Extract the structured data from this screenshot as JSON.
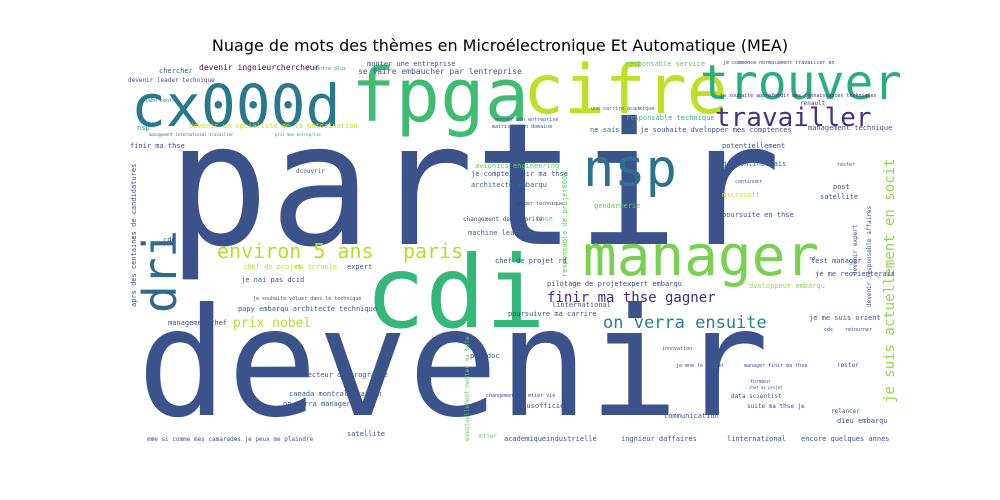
{
  "title": "Nuage de mots des thèmes en Microélectronique Et Automatique (MEA)",
  "words": [
    {
      "text": "partir",
      "color": "#3b528b"
    },
    {
      "text": "devenir",
      "color": "#3b528b"
    },
    {
      "text": "cdi",
      "color": "#35b779"
    },
    {
      "text": "fpga",
      "color": "#3fbc73"
    },
    {
      "text": "cifre",
      "color": "#bddf26"
    },
    {
      "text": "cx000d",
      "color": "#2a788e"
    },
    {
      "text": "trouver",
      "color": "#29af7f"
    },
    {
      "text": "manager",
      "color": "#7ad151"
    },
    {
      "text": "nsp",
      "color": "#2c728e"
    },
    {
      "text": "dri",
      "color": "#31688e"
    },
    {
      "text": "travailler",
      "color": "#46327e"
    },
    {
      "text": "environ 5 ans",
      "color": "#b5de2b"
    },
    {
      "text": "paris",
      "color": "#b5de2b"
    },
    {
      "text": "on verra ensuite",
      "color": "#277f8e"
    },
    {
      "text": "finir ma thse gagner",
      "color": "#472d7b"
    },
    {
      "text": "je suis actuellement en socit",
      "color": "#8fd744"
    },
    {
      "text": "prix nobel",
      "color": "#b5de2b"
    },
    {
      "text": "devenir ingnieurchercheur",
      "color": "#440154"
    },
    {
      "text": "se faire embaucher par lentreprise",
      "color": "#3b528b"
    },
    {
      "text": "monter une entreprise",
      "color": "#3b528b"
    },
    {
      "text": "responsable service",
      "color": "#5ec962"
    },
    {
      "text": "je commence normalement travailler en",
      "color": "#472d7b"
    },
    {
      "text": "je souhaite approfondir mes connaissances techniques",
      "color": "#482878"
    },
    {
      "text": "chercher",
      "color": "#31688e"
    },
    {
      "text": "devenir leader technique",
      "color": "#3e4989"
    },
    {
      "text": "montre plus",
      "color": "#1f9e89"
    },
    {
      "text": "labo cenfs",
      "color": "#21918c"
    },
    {
      "text": "nsp",
      "color": "#21918c"
    },
    {
      "text": "devenir un spcialiste de la motorisation",
      "color": "#c8e020"
    },
    {
      "text": "management international travailler",
      "color": "#2c728e"
    },
    {
      "text": "prix mon entreprise",
      "color": "#1f9e89"
    },
    {
      "text": "finir ma thse",
      "color": "#3e4989"
    },
    {
      "text": "ne sais pas",
      "color": "#2c728e"
    },
    {
      "text": "je souhaite dvelopper mes comptences",
      "color": "#3b528b"
    },
    {
      "text": "responsable technique",
      "color": "#35b779"
    },
    {
      "text": "une carrire acadmique",
      "color": "#31688e"
    },
    {
      "text": "renault",
      "color": "#3e4989"
    },
    {
      "text": "management technique",
      "color": "#3b528b"
    },
    {
      "text": "potentiellement",
      "color": "#3b528b"
    },
    {
      "text": "je continuerais",
      "color": "#31688e"
    },
    {
      "text": "avionics engineering",
      "color": "#5ec962"
    },
    {
      "text": "je compte finir ma thse",
      "color": "#3b528b"
    },
    {
      "text": "architecte embarqu",
      "color": "#31688e"
    },
    {
      "text": "leader technique",
      "color": "#3e4989"
    },
    {
      "text": "gendarmerie",
      "color": "#5ec962"
    },
    {
      "text": "changement dentreprise",
      "color": "#3e4989"
    },
    {
      "text": "thse",
      "color": "#5ec962"
    },
    {
      "text": "machine learning",
      "color": "#31688e"
    },
    {
      "text": "responsable de projet000d",
      "color": "#5ec962"
    },
    {
      "text": "microsoft",
      "color": "#bddf26"
    },
    {
      "text": "continuer",
      "color": "#3b528b"
    },
    {
      "text": "poursuite en thse",
      "color": "#3b528b"
    },
    {
      "text": "post",
      "color": "#3e4989"
    },
    {
      "text": "satellite",
      "color": "#3b528b"
    },
    {
      "text": "devenir expert",
      "color": "#3b528b"
    },
    {
      "text": "devenir responsable affaires",
      "color": "#3b528b"
    },
    {
      "text": "cdd",
      "color": "#3b528b"
    },
    {
      "text": "chef de projet",
      "color": "#b5de2b"
    },
    {
      "text": "ou scroule",
      "color": "#b5de2b"
    },
    {
      "text": "expert",
      "color": "#3b528b"
    },
    {
      "text": "chef de projet rd",
      "color": "#3b528b"
    },
    {
      "text": "je nai pas dcid",
      "color": "#3b528b"
    },
    {
      "text": "je souhaite voluer dans le technique",
      "color": "#3b528b"
    },
    {
      "text": "papy embarqu architecte technique",
      "color": "#31688e"
    },
    {
      "text": "managementchef",
      "color": "#3b528b"
    },
    {
      "text": "pilotage de projetexpert embarqu",
      "color": "#3e4989"
    },
    {
      "text": "poursuivre ma carrire",
      "color": "#3b528b"
    },
    {
      "text": "linternational",
      "color": "#3b528b"
    },
    {
      "text": "je me reorienterais",
      "color": "#3b528b"
    },
    {
      "text": "test manager",
      "color": "#3b528b"
    },
    {
      "text": "dveloppeur embarqu",
      "color": "#8fd744"
    },
    {
      "text": "aprs des centaines de candidatures",
      "color": "#3e4989"
    },
    {
      "text": "parisienne",
      "color": "#3b528b"
    },
    {
      "text": "directeur de programme",
      "color": "#3b528b"
    },
    {
      "text": "postdoc",
      "color": "#3b528b"
    },
    {
      "text": "canada montral cration",
      "color": "#3b528b"
    },
    {
      "text": "on verra manager dune",
      "color": "#3b528b"
    },
    {
      "text": "sousofficier",
      "color": "#3b528b"
    },
    {
      "text": "satellite",
      "color": "#3b528b"
    },
    {
      "text": "communication",
      "color": "#3b528b"
    },
    {
      "text": "data scientist",
      "color": "#3b528b"
    },
    {
      "text": "suite ma thse je",
      "color": "#3b528b"
    },
    {
      "text": "relancer",
      "color": "#3b528b"
    },
    {
      "text": "dieu embarqu",
      "color": "#3b528b"
    },
    {
      "text": "mme si comme mes camarades je peux me plaindre",
      "color": "#3b528b"
    },
    {
      "text": "academiqueindustrielle",
      "color": "#3b528b"
    },
    {
      "text": "ingnieur daffaires",
      "color": "#3b528b"
    },
    {
      "text": "linternational",
      "color": "#3b528b"
    },
    {
      "text": "encore quelques annes",
      "color": "#3b528b"
    },
    {
      "text": "manager finir ma thse",
      "color": "#3b528b"
    },
    {
      "text": "je mne le projet",
      "color": "#3b528b"
    },
    {
      "text": "rester",
      "color": "#3b528b"
    },
    {
      "text": "innovation",
      "color": "#3b528b"
    },
    {
      "text": "formeur",
      "color": "#3b528b"
    },
    {
      "text": "chef de projet",
      "color": "#3b528b"
    },
    {
      "text": "eventuellement monter ma bote",
      "color": "#5ec962"
    },
    {
      "text": "matriser mon domaine",
      "color": "#3b528b"
    },
    {
      "text": "monter son entreprise",
      "color": "#3b528b"
    },
    {
      "text": "rester",
      "color": "#3b528b"
    },
    {
      "text": "rd",
      "color": "#3b528b"
    },
    {
      "text": "cds",
      "color": "#3b528b"
    },
    {
      "text": "retourner",
      "color": "#3b528b"
    },
    {
      "text": "je me suis orient",
      "color": "#3b528b"
    },
    {
      "text": "dcouvrir",
      "color": "#3b528b"
    },
    {
      "text": "changement de mtier vie",
      "color": "#3b528b"
    },
    {
      "text": "mtier",
      "color": "#5ec962"
    }
  ]
}
